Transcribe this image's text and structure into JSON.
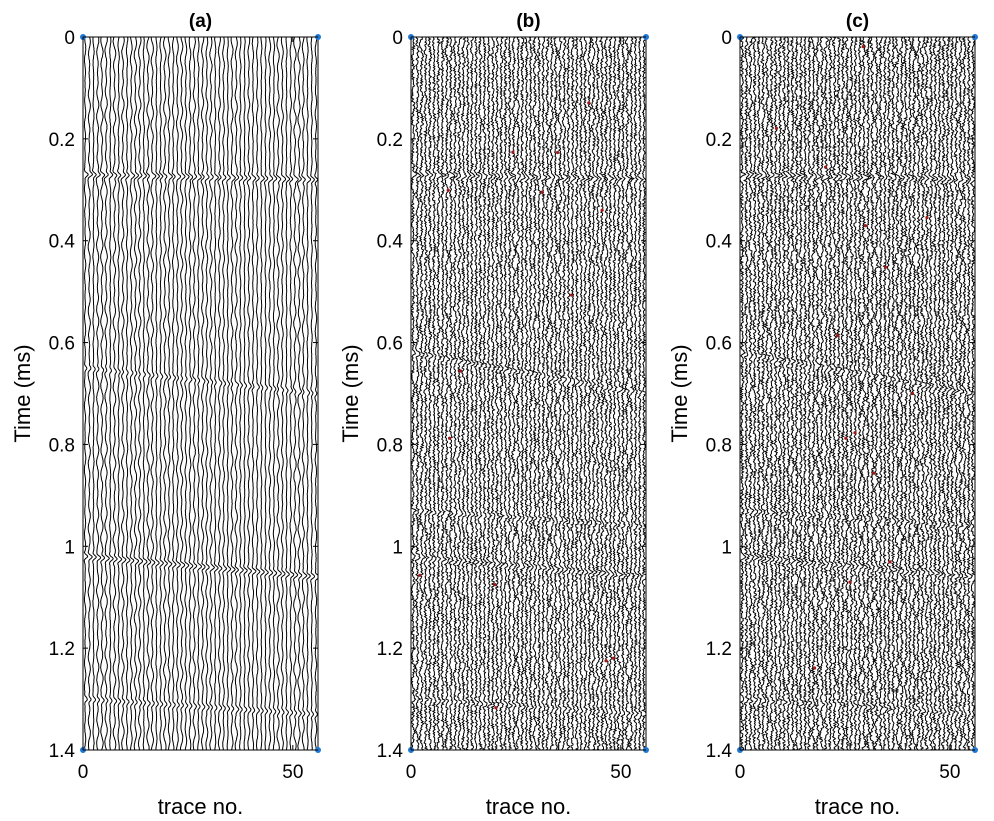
{
  "chart_data": [
    {
      "type": "seismic-wiggle",
      "title": "(a)",
      "xlabel": "trace no.",
      "ylabel": "Time (ms)",
      "xlim": [
        0,
        56
      ],
      "ylim": [
        0,
        1.4
      ],
      "y_reversed": true,
      "x_ticks": [
        0,
        50
      ],
      "y_ticks": [
        0,
        0.2,
        0.4,
        0.6,
        0.8,
        1,
        1.2,
        1.4
      ],
      "y_tick_labels": [
        "0",
        "0.2",
        "0.4",
        "0.6",
        "0.8",
        "1",
        "1.2",
        "1.4"
      ],
      "num_traces": 56,
      "noise_level": 0.05,
      "trace_color": "#000000",
      "marker_color": "#1f77d4",
      "events": [
        {
          "time_at_first_trace": 0.27,
          "time_at_last_trace": 0.28,
          "amplitude": 0.8
        },
        {
          "time_at_first_trace": 0.65,
          "time_at_last_trace": 0.7,
          "amplitude": 0.5
        },
        {
          "time_at_first_trace": 1.02,
          "time_at_last_trace": 1.06,
          "amplitude": 0.9
        },
        {
          "time_at_first_trace": 1.3,
          "time_at_last_trace": 1.33,
          "amplitude": 0.6
        }
      ]
    },
    {
      "type": "seismic-wiggle",
      "title": "(b)",
      "xlabel": "trace no.",
      "ylabel": "Time (ms)",
      "xlim": [
        0,
        56
      ],
      "ylim": [
        0,
        1.4
      ],
      "y_reversed": true,
      "x_ticks": [
        0,
        50
      ],
      "y_ticks": [
        0,
        0.2,
        0.4,
        0.6,
        0.8,
        1,
        1.2,
        1.4
      ],
      "y_tick_labels": [
        "0",
        "0.2",
        "0.4",
        "0.6",
        "0.8",
        "1",
        "1.2",
        "1.4"
      ],
      "num_traces": 56,
      "noise_level": 0.45,
      "trace_color": "#000000",
      "marker_color": "#1f77d4",
      "events": [
        {
          "time_at_first_trace": 0.27,
          "time_at_last_trace": 0.28,
          "amplitude": 0.9
        },
        {
          "time_at_first_trace": 0.62,
          "time_at_last_trace": 0.7,
          "amplitude": 0.7
        },
        {
          "time_at_first_trace": 0.93,
          "time_at_last_trace": 0.96,
          "amplitude": 0.6
        },
        {
          "time_at_first_trace": 1.02,
          "time_at_last_trace": 1.06,
          "amplitude": 0.8
        },
        {
          "time_at_first_trace": 1.3,
          "time_at_last_trace": 1.33,
          "amplitude": 0.6
        }
      ]
    },
    {
      "type": "seismic-wiggle",
      "title": "(c)",
      "xlabel": "trace no.",
      "ylabel": "Time (ms)",
      "xlim": [
        0,
        56
      ],
      "ylim": [
        0,
        1.4
      ],
      "y_reversed": true,
      "x_ticks": [
        0,
        50
      ],
      "y_ticks": [
        0,
        0.2,
        0.4,
        0.6,
        0.8,
        1,
        1.2,
        1.4
      ],
      "y_tick_labels": [
        "0",
        "0.2",
        "0.4",
        "0.6",
        "0.8",
        "1",
        "1.2",
        "1.4"
      ],
      "num_traces": 56,
      "noise_level": 0.5,
      "trace_color": "#000000",
      "marker_color": "#1f77d4",
      "events": [
        {
          "time_at_first_trace": 0.27,
          "time_at_last_trace": 0.28,
          "amplitude": 0.9
        },
        {
          "time_at_first_trace": 0.62,
          "time_at_last_trace": 0.7,
          "amplitude": 0.7
        },
        {
          "time_at_first_trace": 0.93,
          "time_at_last_trace": 0.96,
          "amplitude": 0.6
        },
        {
          "time_at_first_trace": 1.02,
          "time_at_last_trace": 1.06,
          "amplitude": 0.8
        },
        {
          "time_at_first_trace": 1.3,
          "time_at_last_trace": 1.33,
          "amplitude": 0.6
        }
      ]
    }
  ]
}
